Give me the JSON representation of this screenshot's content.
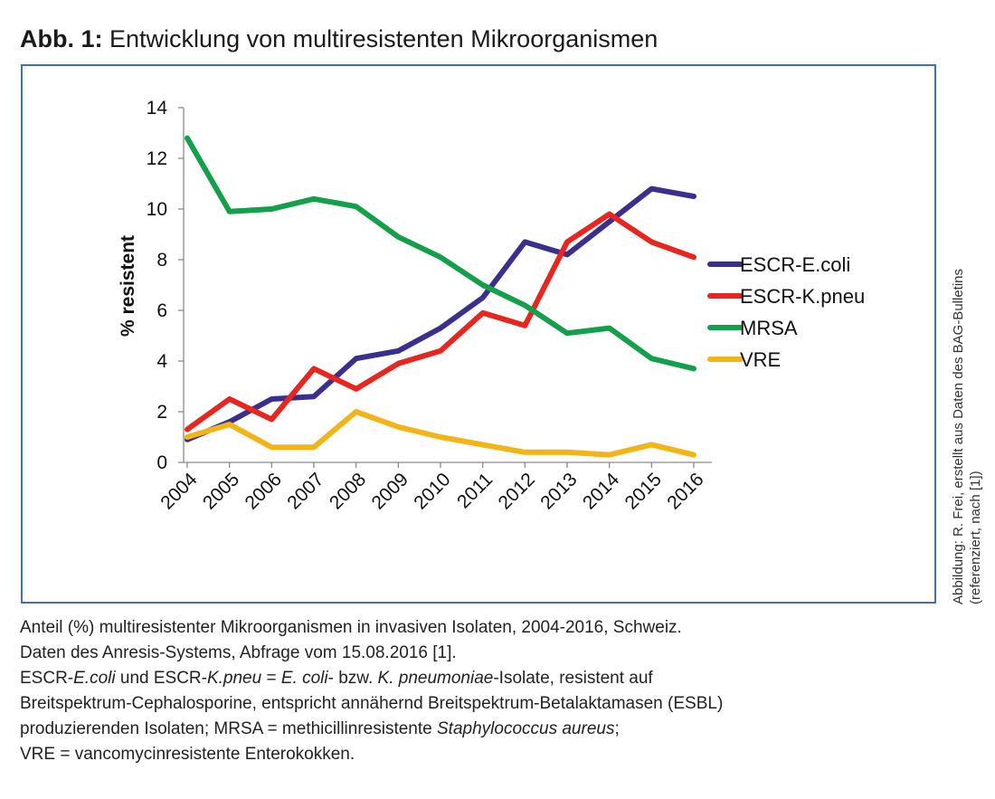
{
  "figure": {
    "label": "Abb. 1:",
    "title": "Entwicklung von multiresistenten Mikroorganismen"
  },
  "chart_data": {
    "type": "line",
    "x": [
      "2004",
      "2005",
      "2006",
      "2007",
      "2008",
      "2009",
      "2010",
      "2011",
      "2012",
      "2013",
      "2014",
      "2015",
      "2016"
    ],
    "ylabel": "% resistent",
    "xlabel": "",
    "ylim": [
      0,
      14
    ],
    "yticks": [
      0,
      2,
      4,
      6,
      8,
      10,
      12,
      14
    ],
    "grid": false,
    "legend_position": "right",
    "series": [
      {
        "name": "ESCR-E.coli",
        "color": "#3a2f8f",
        "values": [
          0.9,
          1.6,
          2.5,
          2.6,
          4.1,
          4.4,
          5.3,
          6.5,
          8.7,
          8.2,
          9.5,
          10.8,
          10.5
        ]
      },
      {
        "name": "ESCR-K.pneu",
        "color": "#e8251f",
        "values": [
          1.3,
          2.5,
          1.7,
          3.7,
          2.9,
          3.9,
          4.4,
          5.9,
          5.4,
          8.7,
          9.8,
          8.7,
          8.1
        ]
      },
      {
        "name": "MRSA",
        "color": "#14a04a",
        "values": [
          12.8,
          9.9,
          10.0,
          10.4,
          10.1,
          8.9,
          8.1,
          7.0,
          6.2,
          5.1,
          5.3,
          4.1,
          3.7
        ]
      },
      {
        "name": "VRE",
        "color": "#f2b417",
        "values": [
          1.0,
          1.5,
          0.6,
          0.6,
          2.0,
          1.4,
          1.0,
          0.7,
          0.4,
          0.4,
          0.3,
          0.7,
          0.3
        ]
      }
    ]
  },
  "side_note": {
    "line1": "Abbildung: R. Frei, erstellt aus Daten des BAG-Bulletins",
    "line2": "(referenziert, nach [1])"
  },
  "caption": {
    "line1": "Anteil (%) multiresistenter Mikroorganismen in invasiven Isolaten, 2004-2016, Schweiz.",
    "line2": "Daten des Anresis-Systems, Abfrage vom 15.08.2016 [1].",
    "line3": {
      "part1": "ESCR-",
      "part2": "E.coli",
      "part3": " und ESCR-",
      "part4": "K.pneu",
      "part5": " = ",
      "part6": "E. coli",
      "part7": "- bzw. ",
      "part8": "K. pneumoniae",
      "part9": "-Isolate, resistent auf"
    },
    "line4": "Breitspektrum-Cephalosporine, entspricht annähernd Breitspektrum-Betalaktamasen (ESBL)",
    "line5": {
      "part1": "produzierenden Isolaten; MRSA = methicillinresistente ",
      "part2": "Staphylococcus aureus",
      "part3": ";"
    },
    "line6": "VRE = vancomycinresistente Enterokokken."
  }
}
